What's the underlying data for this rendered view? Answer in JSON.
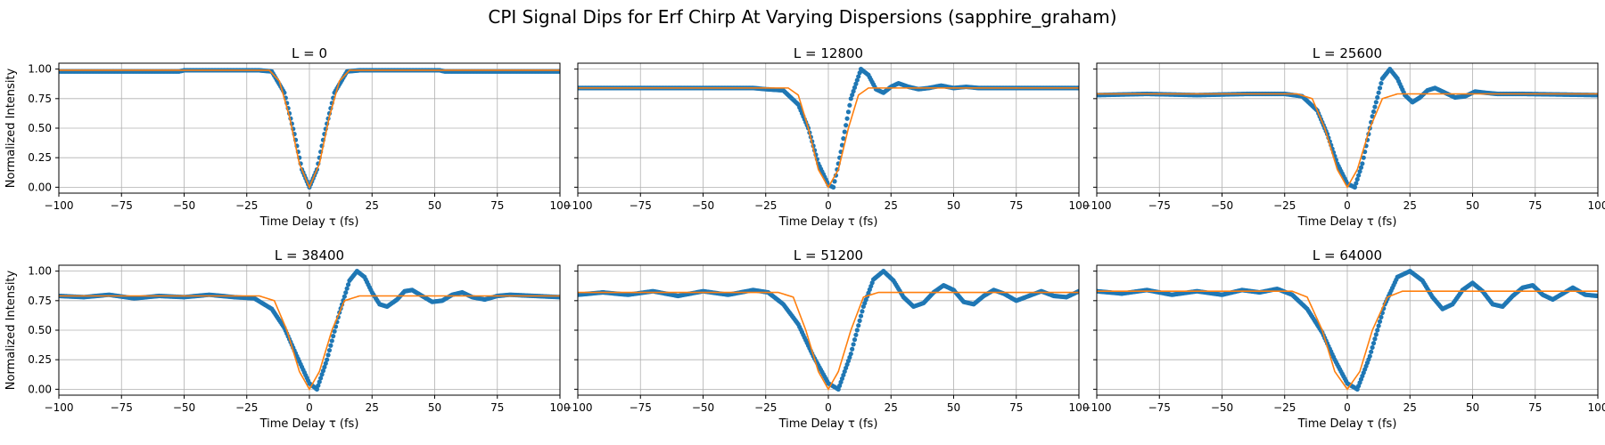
{
  "figure": {
    "title": "CPI Signal Dips for Erf Chirp At Varying Dispersions (sapphire_graham)"
  },
  "colors": {
    "data": "#1f77b4",
    "fit": "#ff7f0e",
    "grid": "#b0b0b0"
  },
  "chart_data": [
    {
      "type": "scatter",
      "title": "L = 0",
      "xlabel": "Time Delay τ (fs)",
      "ylabel": "Normalized Intensity",
      "xlim": [
        -100,
        100
      ],
      "ylim": [
        -0.05,
        1.05
      ],
      "xticks": [
        "−100",
        "−75",
        "−50",
        "−25",
        "0",
        "25",
        "50",
        "75",
        "100"
      ],
      "yticks": [
        "0.00",
        "0.25",
        "0.50",
        "0.75",
        "1.00"
      ],
      "grid": true,
      "series": [
        {
          "values": [
            [
              -100,
              0.98
            ],
            [
              -52,
              0.98
            ],
            [
              -50,
              0.99
            ],
            [
              -20,
              0.99
            ],
            [
              -15,
              0.98
            ],
            [
              -10,
              0.8
            ],
            [
              -6,
              0.45
            ],
            [
              -3,
              0.15
            ],
            [
              0,
              0.0
            ],
            [
              3,
              0.15
            ],
            [
              6,
              0.45
            ],
            [
              10,
              0.8
            ],
            [
              15,
              0.98
            ],
            [
              20,
              0.99
            ],
            [
              52,
              0.99
            ],
            [
              54,
              0.98
            ],
            [
              100,
              0.98
            ]
          ]
        },
        {
          "values": [
            [
              -100,
              0.99
            ],
            [
              -16,
              0.99
            ],
            [
              -12,
              0.9
            ],
            [
              -8,
              0.6
            ],
            [
              -4,
              0.2
            ],
            [
              0,
              0.0
            ],
            [
              4,
              0.2
            ],
            [
              8,
              0.6
            ],
            [
              12,
              0.9
            ],
            [
              16,
              0.99
            ],
            [
              100,
              0.99
            ]
          ]
        }
      ]
    },
    {
      "type": "scatter",
      "title": "L = 12800",
      "xlabel": "Time Delay τ (fs)",
      "xlim": [
        -100,
        100
      ],
      "ylim": [
        -0.05,
        1.05
      ],
      "xticks": [
        "−100",
        "−75",
        "−50",
        "−25",
        "0",
        "25",
        "50",
        "75",
        "100"
      ],
      "grid": true,
      "series": [
        {
          "values": [
            [
              -100,
              0.84
            ],
            [
              -30,
              0.84
            ],
            [
              -25,
              0.83
            ],
            [
              -18,
              0.82
            ],
            [
              -12,
              0.7
            ],
            [
              -8,
              0.5
            ],
            [
              -4,
              0.2
            ],
            [
              0,
              0.02
            ],
            [
              2,
              0.0
            ],
            [
              5,
              0.3
            ],
            [
              9,
              0.75
            ],
            [
              13,
              1.0
            ],
            [
              16,
              0.95
            ],
            [
              19,
              0.83
            ],
            [
              22,
              0.8
            ],
            [
              25,
              0.85
            ],
            [
              28,
              0.88
            ],
            [
              32,
              0.85
            ],
            [
              36,
              0.83
            ],
            [
              40,
              0.84
            ],
            [
              45,
              0.86
            ],
            [
              50,
              0.84
            ],
            [
              55,
              0.85
            ],
            [
              60,
              0.84
            ],
            [
              100,
              0.84
            ]
          ]
        },
        {
          "values": [
            [
              -100,
              0.84
            ],
            [
              -16,
              0.84
            ],
            [
              -12,
              0.78
            ],
            [
              -8,
              0.5
            ],
            [
              -4,
              0.15
            ],
            [
              0,
              0.0
            ],
            [
              4,
              0.15
            ],
            [
              8,
              0.5
            ],
            [
              12,
              0.78
            ],
            [
              16,
              0.84
            ],
            [
              100,
              0.84
            ]
          ]
        }
      ]
    },
    {
      "type": "scatter",
      "title": "L = 25600",
      "xlabel": "Time Delay τ (fs)",
      "xlim": [
        -100,
        100
      ],
      "ylim": [
        -0.05,
        1.05
      ],
      "xticks": [
        "−100",
        "−75",
        "−50",
        "−25",
        "0",
        "25",
        "50",
        "75",
        "100"
      ],
      "grid": true,
      "series": [
        {
          "values": [
            [
              -100,
              0.78
            ],
            [
              -80,
              0.79
            ],
            [
              -60,
              0.78
            ],
            [
              -40,
              0.79
            ],
            [
              -25,
              0.79
            ],
            [
              -18,
              0.77
            ],
            [
              -12,
              0.65
            ],
            [
              -8,
              0.45
            ],
            [
              -4,
              0.2
            ],
            [
              0,
              0.03
            ],
            [
              3,
              0.0
            ],
            [
              6,
              0.2
            ],
            [
              10,
              0.6
            ],
            [
              14,
              0.92
            ],
            [
              17,
              1.0
            ],
            [
              20,
              0.92
            ],
            [
              23,
              0.78
            ],
            [
              26,
              0.72
            ],
            [
              29,
              0.76
            ],
            [
              32,
              0.82
            ],
            [
              35,
              0.84
            ],
            [
              39,
              0.8
            ],
            [
              43,
              0.76
            ],
            [
              47,
              0.77
            ],
            [
              51,
              0.81
            ],
            [
              55,
              0.8
            ],
            [
              60,
              0.79
            ],
            [
              70,
              0.79
            ],
            [
              100,
              0.78
            ]
          ]
        },
        {
          "values": [
            [
              -100,
              0.79
            ],
            [
              -20,
              0.79
            ],
            [
              -14,
              0.75
            ],
            [
              -9,
              0.5
            ],
            [
              -4,
              0.15
            ],
            [
              0,
              0.0
            ],
            [
              4,
              0.15
            ],
            [
              9,
              0.5
            ],
            [
              14,
              0.75
            ],
            [
              20,
              0.79
            ],
            [
              100,
              0.79
            ]
          ]
        }
      ]
    },
    {
      "type": "scatter",
      "title": "L = 38400",
      "xlabel": "Time Delay τ (fs)",
      "ylabel": "Normalized Intensity",
      "xlim": [
        -100,
        100
      ],
      "ylim": [
        -0.05,
        1.05
      ],
      "xticks": [
        "−100",
        "−75",
        "−50",
        "−25",
        "0",
        "25",
        "50",
        "75",
        "100"
      ],
      "yticks": [
        "0.00",
        "0.25",
        "0.50",
        "0.75",
        "1.00"
      ],
      "grid": true,
      "series": [
        {
          "values": [
            [
              -100,
              0.79
            ],
            [
              -90,
              0.78
            ],
            [
              -80,
              0.8
            ],
            [
              -70,
              0.77
            ],
            [
              -60,
              0.79
            ],
            [
              -50,
              0.78
            ],
            [
              -40,
              0.8
            ],
            [
              -30,
              0.78
            ],
            [
              -22,
              0.77
            ],
            [
              -15,
              0.68
            ],
            [
              -10,
              0.52
            ],
            [
              -5,
              0.28
            ],
            [
              0,
              0.05
            ],
            [
              3,
              0.0
            ],
            [
              7,
              0.25
            ],
            [
              12,
              0.65
            ],
            [
              16,
              0.92
            ],
            [
              19,
              1.0
            ],
            [
              22,
              0.95
            ],
            [
              25,
              0.82
            ],
            [
              28,
              0.72
            ],
            [
              31,
              0.7
            ],
            [
              35,
              0.76
            ],
            [
              38,
              0.83
            ],
            [
              41,
              0.84
            ],
            [
              45,
              0.79
            ],
            [
              49,
              0.74
            ],
            [
              53,
              0.75
            ],
            [
              57,
              0.8
            ],
            [
              61,
              0.82
            ],
            [
              65,
              0.78
            ],
            [
              70,
              0.76
            ],
            [
              75,
              0.79
            ],
            [
              80,
              0.8
            ],
            [
              90,
              0.79
            ],
            [
              100,
              0.78
            ]
          ]
        },
        {
          "values": [
            [
              -100,
              0.79
            ],
            [
              -20,
              0.79
            ],
            [
              -14,
              0.75
            ],
            [
              -9,
              0.5
            ],
            [
              -4,
              0.15
            ],
            [
              0,
              0.0
            ],
            [
              4,
              0.15
            ],
            [
              9,
              0.5
            ],
            [
              14,
              0.75
            ],
            [
              20,
              0.79
            ],
            [
              100,
              0.79
            ]
          ]
        }
      ]
    },
    {
      "type": "scatter",
      "title": "L = 51200",
      "xlabel": "Time Delay τ (fs)",
      "xlim": [
        -100,
        100
      ],
      "ylim": [
        -0.05,
        1.05
      ],
      "xticks": [
        "−100",
        "−75",
        "−50",
        "−25",
        "0",
        "25",
        "50",
        "75",
        "100"
      ],
      "grid": true,
      "series": [
        {
          "values": [
            [
              -100,
              0.8
            ],
            [
              -90,
              0.82
            ],
            [
              -80,
              0.8
            ],
            [
              -70,
              0.83
            ],
            [
              -60,
              0.79
            ],
            [
              -50,
              0.83
            ],
            [
              -40,
              0.8
            ],
            [
              -30,
              0.84
            ],
            [
              -24,
              0.82
            ],
            [
              -18,
              0.72
            ],
            [
              -12,
              0.55
            ],
            [
              -6,
              0.28
            ],
            [
              0,
              0.05
            ],
            [
              4,
              0.0
            ],
            [
              9,
              0.3
            ],
            [
              14,
              0.7
            ],
            [
              18,
              0.93
            ],
            [
              22,
              1.0
            ],
            [
              26,
              0.92
            ],
            [
              30,
              0.78
            ],
            [
              34,
              0.7
            ],
            [
              38,
              0.73
            ],
            [
              42,
              0.82
            ],
            [
              46,
              0.88
            ],
            [
              50,
              0.84
            ],
            [
              54,
              0.74
            ],
            [
              58,
              0.72
            ],
            [
              62,
              0.79
            ],
            [
              66,
              0.84
            ],
            [
              70,
              0.81
            ],
            [
              75,
              0.75
            ],
            [
              80,
              0.79
            ],
            [
              85,
              0.83
            ],
            [
              90,
              0.79
            ],
            [
              95,
              0.78
            ],
            [
              100,
              0.83
            ]
          ]
        },
        {
          "values": [
            [
              -100,
              0.82
            ],
            [
              -20,
              0.82
            ],
            [
              -14,
              0.78
            ],
            [
              -9,
              0.5
            ],
            [
              -4,
              0.15
            ],
            [
              0,
              0.0
            ],
            [
              4,
              0.15
            ],
            [
              9,
              0.5
            ],
            [
              14,
              0.78
            ],
            [
              20,
              0.82
            ],
            [
              100,
              0.82
            ]
          ]
        }
      ]
    },
    {
      "type": "scatter",
      "title": "L = 64000",
      "xlabel": "Time Delay τ (fs)",
      "xlim": [
        -100,
        100
      ],
      "ylim": [
        -0.05,
        1.05
      ],
      "xticks": [
        "−100",
        "−75",
        "−50",
        "−25",
        "0",
        "25",
        "50",
        "75",
        "100"
      ],
      "grid": true,
      "series": [
        {
          "values": [
            [
              -100,
              0.83
            ],
            [
              -90,
              0.81
            ],
            [
              -80,
              0.84
            ],
            [
              -70,
              0.8
            ],
            [
              -60,
              0.83
            ],
            [
              -50,
              0.8
            ],
            [
              -42,
              0.84
            ],
            [
              -35,
              0.82
            ],
            [
              -28,
              0.85
            ],
            [
              -22,
              0.8
            ],
            [
              -16,
              0.68
            ],
            [
              -10,
              0.48
            ],
            [
              -5,
              0.25
            ],
            [
              0,
              0.05
            ],
            [
              4,
              0.0
            ],
            [
              9,
              0.28
            ],
            [
              15,
              0.72
            ],
            [
              20,
              0.95
            ],
            [
              25,
              1.0
            ],
            [
              30,
              0.92
            ],
            [
              34,
              0.78
            ],
            [
              38,
              0.68
            ],
            [
              42,
              0.72
            ],
            [
              46,
              0.84
            ],
            [
              50,
              0.9
            ],
            [
              54,
              0.83
            ],
            [
              58,
              0.72
            ],
            [
              62,
              0.7
            ],
            [
              66,
              0.79
            ],
            [
              70,
              0.86
            ],
            [
              74,
              0.88
            ],
            [
              78,
              0.8
            ],
            [
              82,
              0.76
            ],
            [
              86,
              0.81
            ],
            [
              90,
              0.86
            ],
            [
              95,
              0.8
            ],
            [
              100,
              0.79
            ]
          ]
        },
        {
          "values": [
            [
              -100,
              0.83
            ],
            [
              -22,
              0.83
            ],
            [
              -16,
              0.78
            ],
            [
              -10,
              0.5
            ],
            [
              -5,
              0.15
            ],
            [
              0,
              0.0
            ],
            [
              5,
              0.15
            ],
            [
              10,
              0.5
            ],
            [
              16,
              0.78
            ],
            [
              22,
              0.83
            ],
            [
              100,
              0.83
            ]
          ]
        }
      ]
    }
  ]
}
